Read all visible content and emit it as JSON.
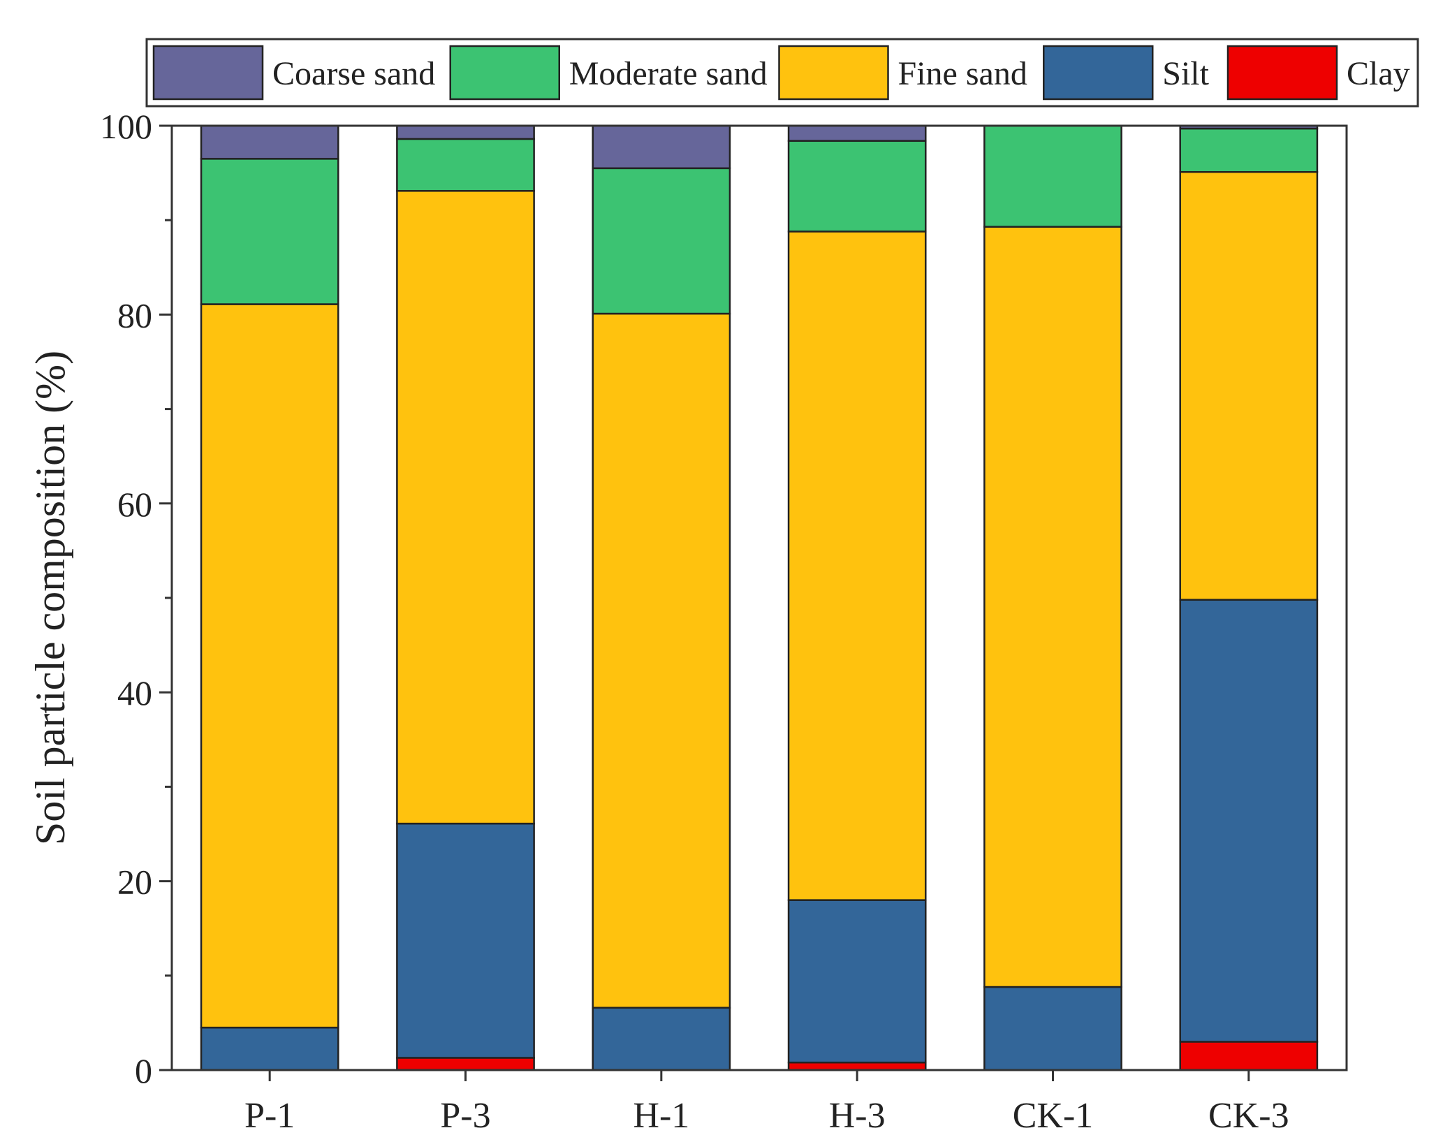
{
  "chart_data": {
    "type": "bar",
    "stacked": true,
    "title": "",
    "xlabel": "",
    "ylabel": "Soil particle composition (%)",
    "ylim": [
      0,
      100
    ],
    "yticks": [
      0,
      20,
      40,
      60,
      80,
      100
    ],
    "categories": [
      "P-1",
      "P-3",
      "H-1",
      "H-3",
      "CK-1",
      "CK-3"
    ],
    "legend_position": "top",
    "series": [
      {
        "name": "Clay",
        "color": "#EE0000",
        "values": [
          0,
          1.3,
          0,
          0.8,
          0,
          3
        ]
      },
      {
        "name": "Silt",
        "color": "#336699",
        "values": [
          4.5,
          24.8,
          6.6,
          17.2,
          8.8,
          46.8
        ]
      },
      {
        "name": "Fine sand",
        "color": "#FFC20E",
        "values": [
          76.6,
          67,
          73.5,
          70.8,
          80.5,
          45.3
        ]
      },
      {
        "name": "Moderate sand",
        "color": "#3CC372",
        "values": [
          15.4,
          5.5,
          15.4,
          9.6,
          10.7,
          4.6
        ]
      },
      {
        "name": "Coarse sand",
        "color": "#66669A",
        "values": [
          3.5,
          1.4,
          4.5,
          1.6,
          0,
          0.3
        ]
      }
    ],
    "legend_order": [
      "Coarse sand",
      "Moderate sand",
      "Fine sand",
      "Silt",
      "Clay"
    ]
  }
}
